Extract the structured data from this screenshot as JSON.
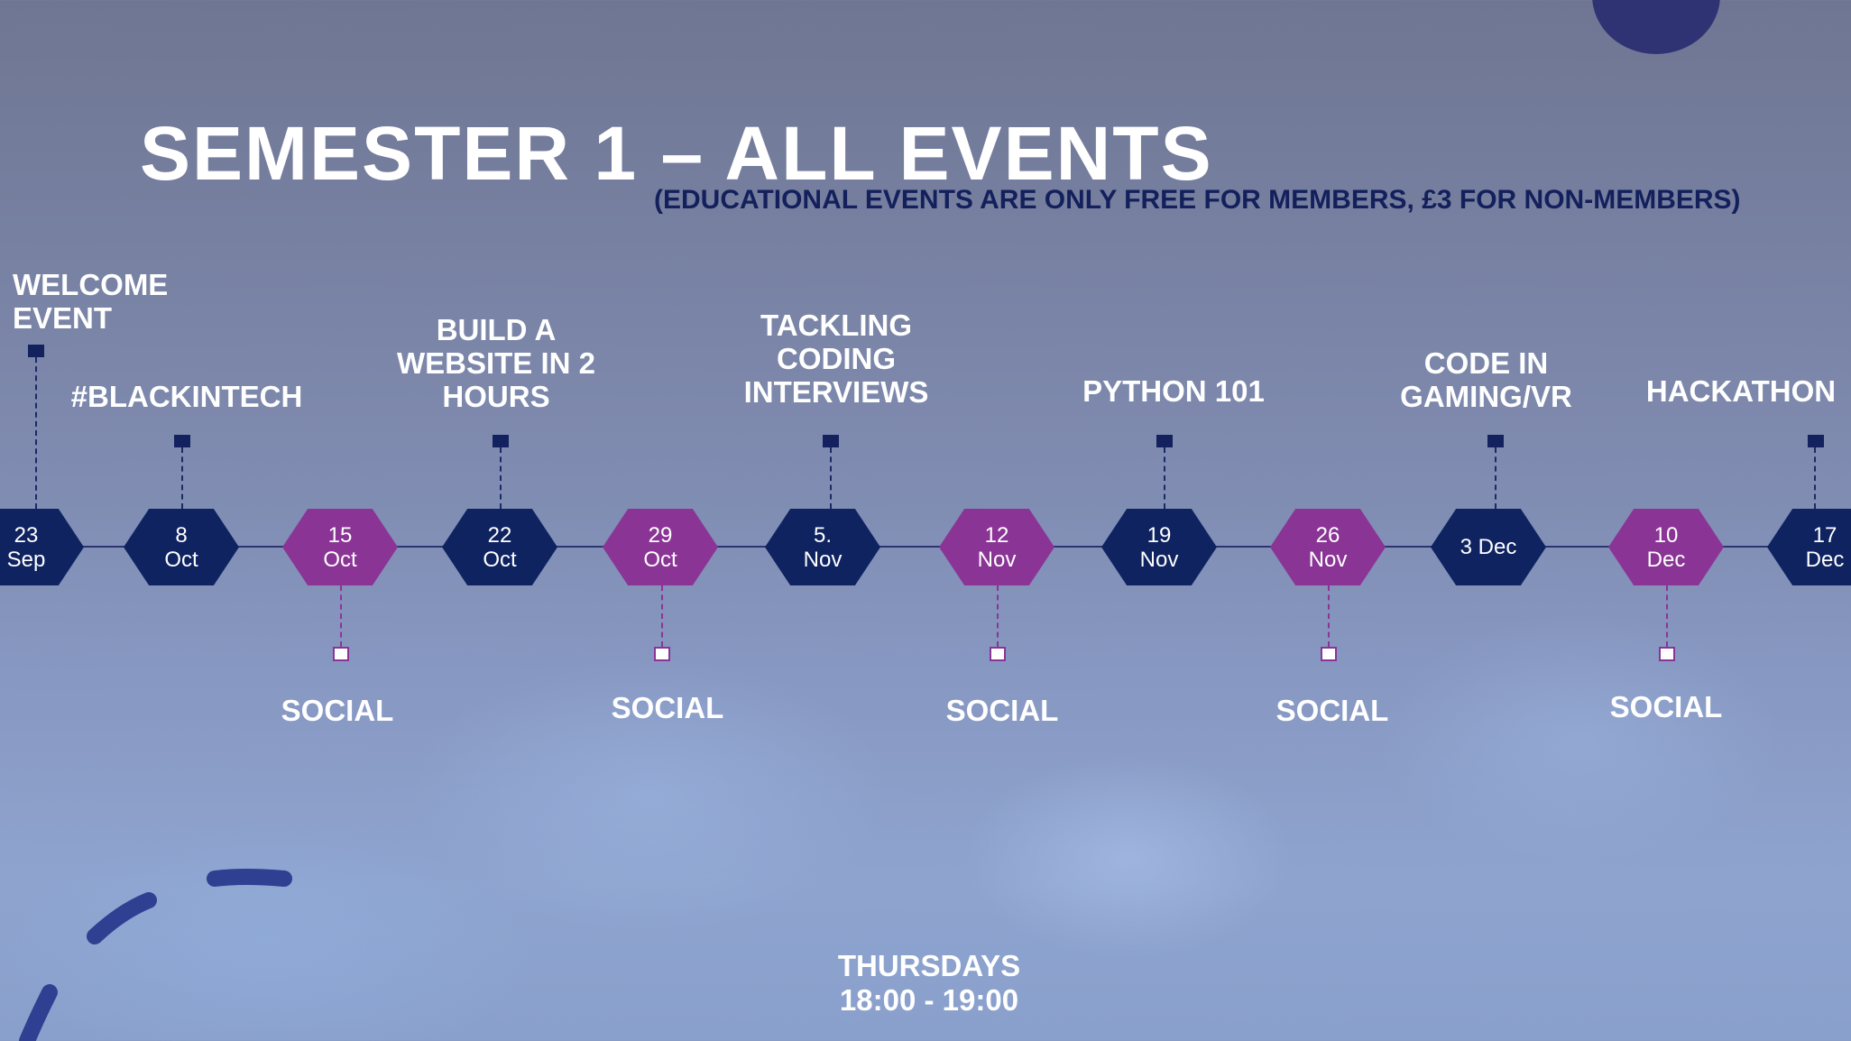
{
  "title": "SEMESTER 1 – ALL EVENTS",
  "subtitle": "(EDUCATIONAL EVENTS ARE ONLY FREE FOR MEMBERS, £3 FOR NON-MEMBERS)",
  "colors": {
    "educational": "#0f2361",
    "social": "#8a3596",
    "accent_circle": "#2f3374"
  },
  "nodes": [
    {
      "date": "23\nSep",
      "type": "educational"
    },
    {
      "date": "8\nOct",
      "type": "educational"
    },
    {
      "date": "15\nOct",
      "type": "social"
    },
    {
      "date": "22\nOct",
      "type": "educational"
    },
    {
      "date": "29\nOct",
      "type": "social"
    },
    {
      "date": "5.\nNov",
      "type": "educational"
    },
    {
      "date": "12\nNov",
      "type": "social"
    },
    {
      "date": "19\nNov",
      "type": "educational"
    },
    {
      "date": "26\nNov",
      "type": "social"
    },
    {
      "date": "3 Dec",
      "type": "educational"
    },
    {
      "date": "10\nDec",
      "type": "social"
    },
    {
      "date": "17\nDec",
      "type": "educational"
    }
  ],
  "events": [
    "WELCOME\nEVENT",
    "#BLACKINTECH",
    "BUILD A\nWEBSITE IN 2\nHOURS",
    "TACKLING\nCODING\nINTERVIEWS",
    "PYTHON 101",
    "CODE IN\nGAMING/VR",
    "HACKATHON"
  ],
  "social_label": "SOCIAL",
  "footer": {
    "day": "THURSDAYS",
    "time": "18:00 - 19:00"
  }
}
